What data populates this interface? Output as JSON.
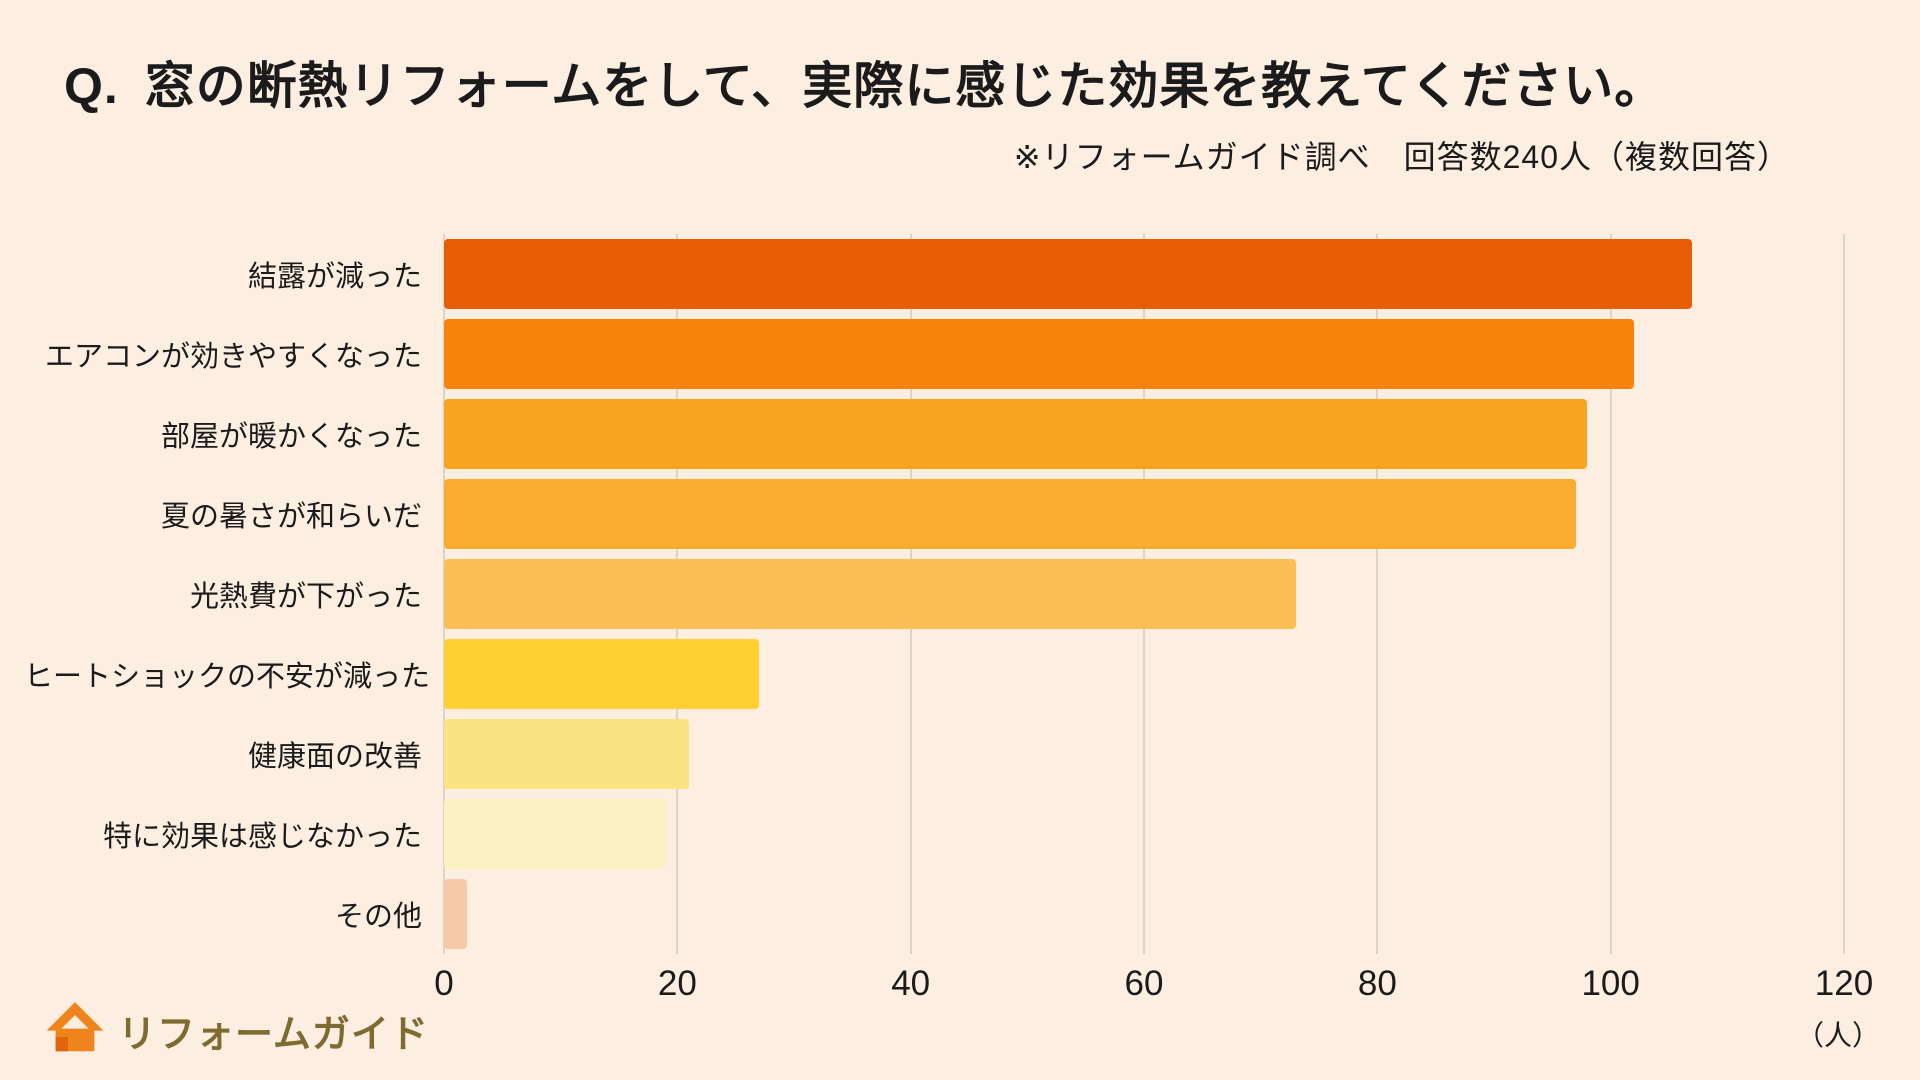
{
  "page": {
    "background": "#FCEFE2",
    "title_q": "Q.",
    "title": "窓の断熱リフォームをして、実際に感じた効果を教えてください。",
    "subtitle": "※リフォームガイド調べ　回答数240人（複数回答）"
  },
  "logo": {
    "text": "リフォームガイド",
    "icon": "house-icon",
    "icon_color": "#F0841C",
    "text_color": "#7D6B2F"
  },
  "chart_data": {
    "type": "bar",
    "orientation": "horizontal",
    "title": "窓の断熱リフォームをして、実際に感じた効果を教えてください。",
    "source_note": "※リフォームガイド調べ　回答数240人（複数回答）",
    "categories": [
      "結露が減った",
      "エアコンが効きやすくなった",
      "部屋が暖かくなった",
      "夏の暑さが和らいだ",
      "光熱費が下がった",
      "ヒートショックの不安が減った",
      "健康面の改善",
      "特に効果は感じなかった",
      "その他"
    ],
    "values": [
      107,
      102,
      98,
      97,
      73,
      27,
      21,
      19,
      2
    ],
    "bar_colors": [
      "#E85D04",
      "#F8820A",
      "#F9A41E",
      "#FAAC2E",
      "#FBBF55",
      "#FFD02F",
      "#FBE283",
      "#FCF1C2",
      "#F6C9A8"
    ],
    "xlim": [
      0,
      120
    ],
    "xticks": [
      0,
      20,
      40,
      60,
      80,
      100,
      120
    ],
    "grid": true,
    "xlabel": "（人）",
    "ylabel": "",
    "legend": false
  }
}
